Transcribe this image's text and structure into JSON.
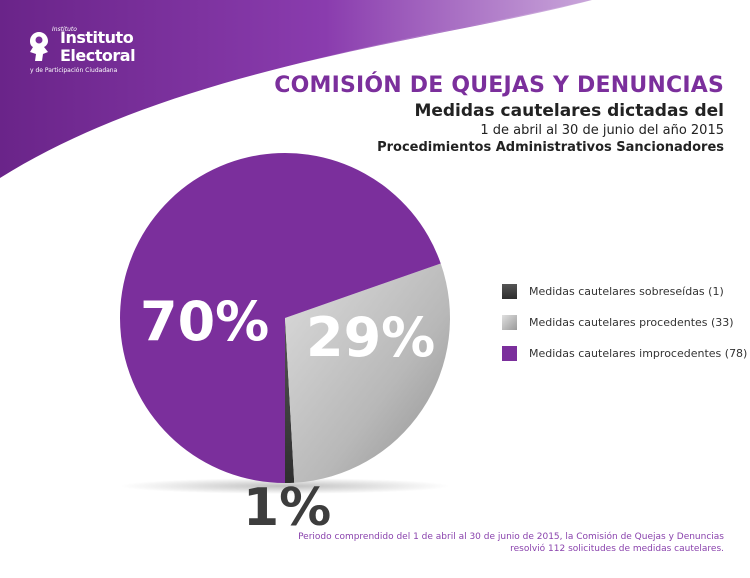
{
  "logo": {
    "small": "Instituto",
    "line1": "Instituto",
    "line2": "Electoral",
    "line3": "y de Participación Ciudadana"
  },
  "title": "COMISIÓN DE QUEJAS Y DENUNCIAS",
  "subtitle1": "Medidas cautelares dictadas del",
  "subtitle2": "1 de abril al 30 de junio del año 2015",
  "subtitle3": "Procedimientos Administrativos Sancionadores",
  "colors": {
    "purple": "#7b2f9c",
    "gray": "#b5b5b5",
    "dark": "#3d3d3d"
  },
  "chart_data": {
    "type": "pie",
    "slices": [
      {
        "label": "Medidas cautelares sobreseídas (1)",
        "count": 1,
        "percent_label": "1%",
        "color": "#3d3d3d"
      },
      {
        "label": "Medidas cautelares procedentes (33)",
        "count": 33,
        "percent_label": "29%",
        "color": "#b5b5b5"
      },
      {
        "label": "Medidas cautelares improcedentes (78)",
        "count": 78,
        "percent_label": "70%",
        "color": "#7b2f9c"
      }
    ],
    "legend_position": "right"
  },
  "footnote": {
    "line1": "Periodo comprendido del 1 de abril al 30 de junio de 2015, la Comisión de Quejas y Denuncias",
    "line2": "resolvió 112 solicitudes de medidas cautelares."
  }
}
